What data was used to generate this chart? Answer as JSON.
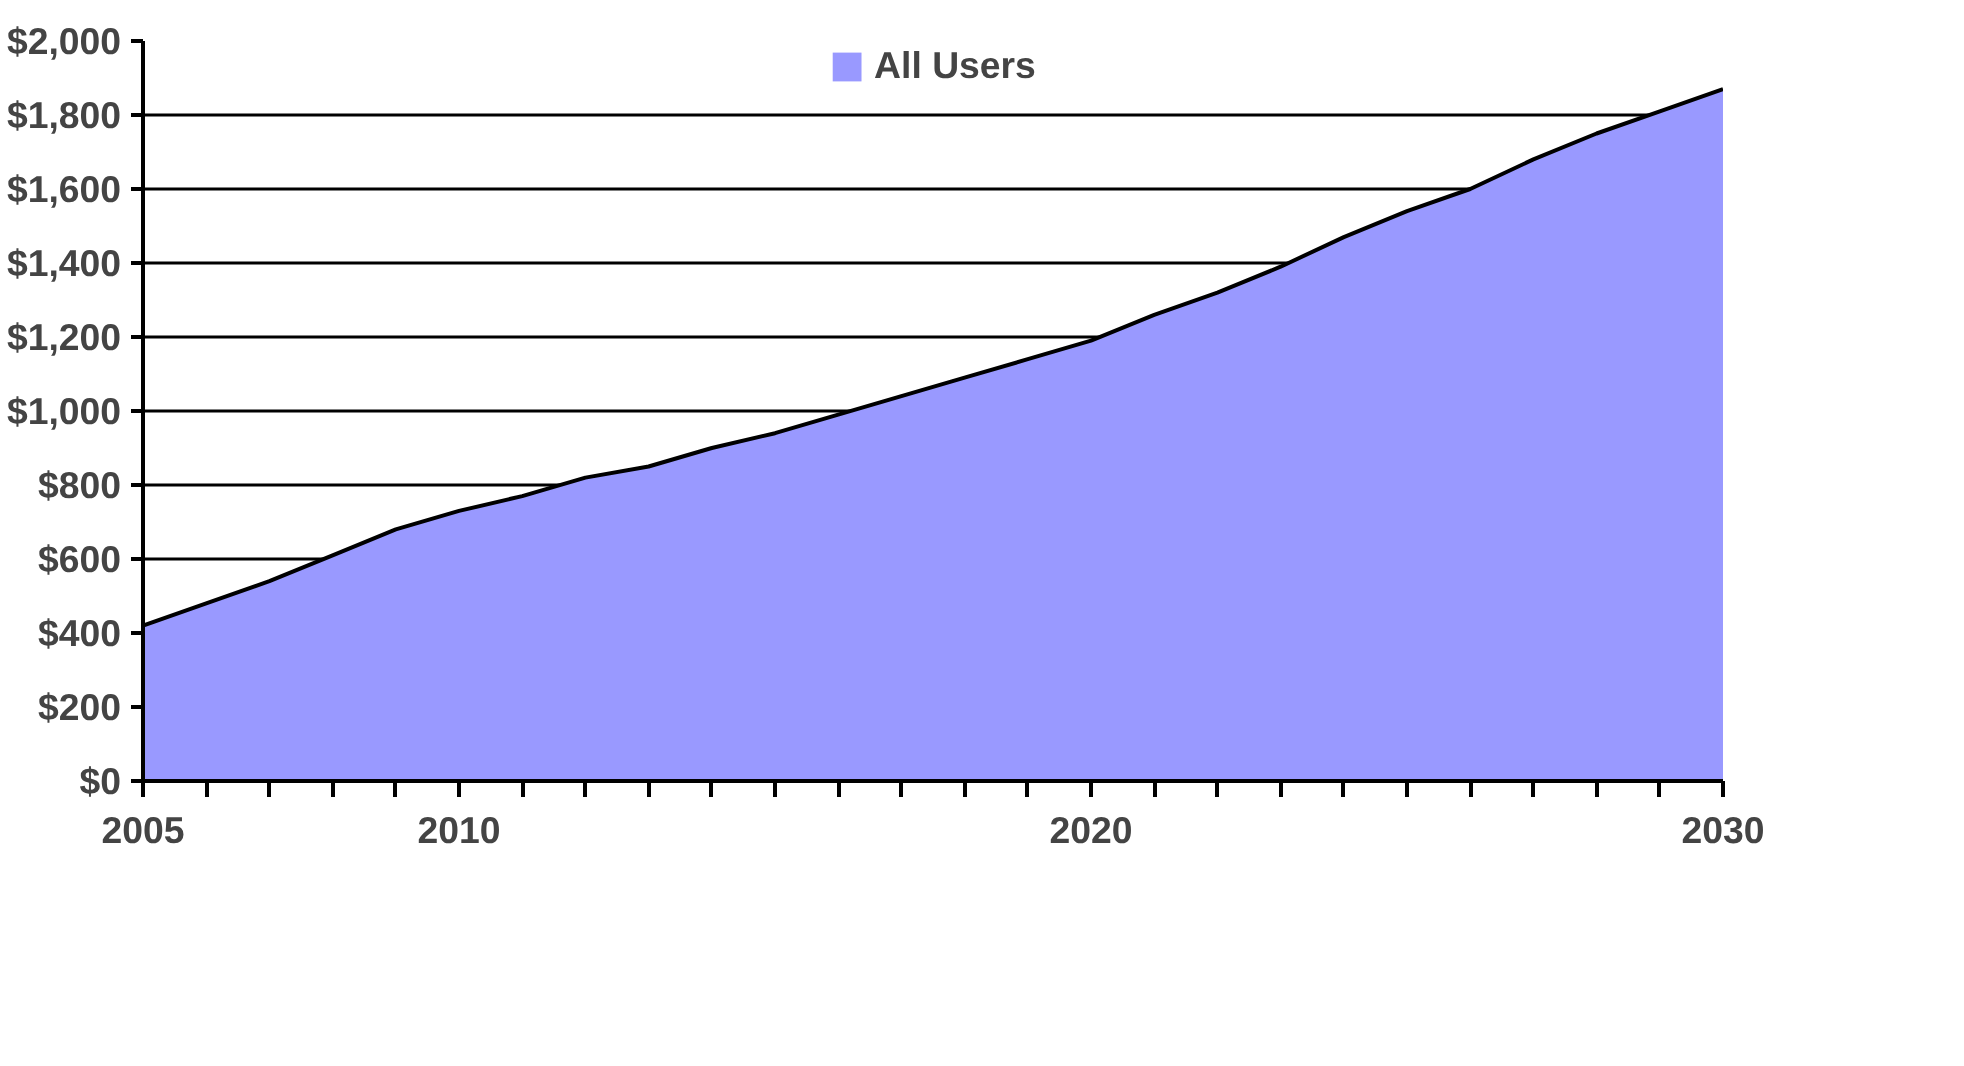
{
  "chart_data": {
    "type": "area",
    "x": [
      2005,
      2006,
      2007,
      2008,
      2009,
      2010,
      2011,
      2012,
      2013,
      2014,
      2015,
      2016,
      2017,
      2018,
      2019,
      2020,
      2021,
      2022,
      2023,
      2024,
      2025,
      2026,
      2027,
      2028,
      2029,
      2030
    ],
    "series": [
      {
        "name": "All Users",
        "color": "#9999ff",
        "values": [
          420,
          480,
          540,
          610,
          680,
          730,
          770,
          820,
          850,
          900,
          940,
          990,
          1040,
          1090,
          1140,
          1190,
          1260,
          1320,
          1390,
          1470,
          1540,
          1600,
          1680,
          1750,
          1810,
          1870
        ]
      }
    ],
    "xlim": [
      2005,
      2030
    ],
    "xticks": [
      2005,
      {
        "value": 2006,
        "label": null
      },
      {
        "value": 2007,
        "label": null
      },
      {
        "value": 2008,
        "label": null
      },
      {
        "value": 2009,
        "label": null
      },
      2010,
      {
        "value": 2011,
        "label": null
      },
      {
        "value": 2012,
        "label": null
      },
      {
        "value": 2013,
        "label": null
      },
      {
        "value": 2014,
        "label": null
      },
      {
        "value": 2015,
        "label": null
      },
      {
        "value": 2016,
        "label": null
      },
      {
        "value": 2017,
        "label": null
      },
      {
        "value": 2018,
        "label": null
      },
      {
        "value": 2019,
        "label": null
      },
      2020,
      {
        "value": 2021,
        "label": null
      },
      {
        "value": 2022,
        "label": null
      },
      {
        "value": 2023,
        "label": null
      },
      {
        "value": 2024,
        "label": null
      },
      {
        "value": 2025,
        "label": null
      },
      {
        "value": 2026,
        "label": null
      },
      {
        "value": 2027,
        "label": null
      },
      {
        "value": 2028,
        "label": null
      },
      {
        "value": 2029,
        "label": null
      },
      2030
    ],
    "ylim": [
      0,
      2000
    ],
    "yticks": [
      {
        "value": 0,
        "label": "$0"
      },
      {
        "value": 200,
        "label": "$200"
      },
      {
        "value": 400,
        "label": "$400"
      },
      {
        "value": 600,
        "label": "$600"
      },
      {
        "value": 800,
        "label": "$800"
      },
      {
        "value": 1000,
        "label": "$1,000"
      },
      {
        "value": 1200,
        "label": "$1,200"
      },
      {
        "value": 1400,
        "label": "$1,400"
      },
      {
        "value": 1600,
        "label": "$1,600"
      },
      {
        "value": 1800,
        "label": "$1,800"
      },
      {
        "value": 2000,
        "label": "$2,000"
      }
    ],
    "grid": "y",
    "legend": "top"
  }
}
